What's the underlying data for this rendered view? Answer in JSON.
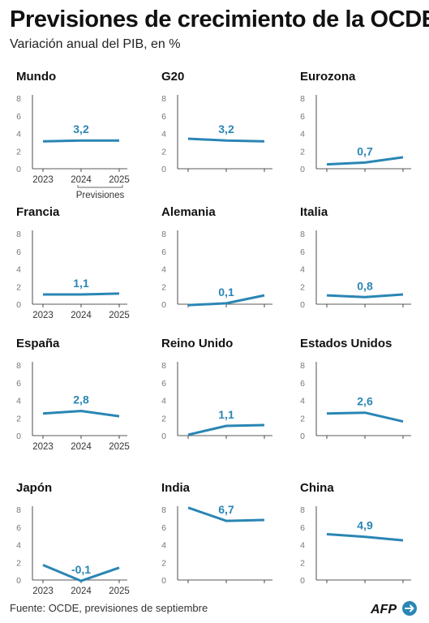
{
  "title": "Previsiones de crecimiento de la OCDE",
  "subtitle": "Variación anual del PIB, en %",
  "source": "Fuente: OCDE, previsiones de septiembre",
  "logo": {
    "text": "AFP",
    "icon": "afp-logo-icon"
  },
  "colors": {
    "line": "#2a86b4",
    "label": "#2a86b4",
    "axis": "#222222",
    "tick": "#777777"
  },
  "years": [
    "2023",
    "2024",
    "2025"
  ],
  "forecast_label": "Previsiones",
  "chart_data": [
    {
      "type": "line",
      "title": "Mundo",
      "x": [
        "2023",
        "2024",
        "2025"
      ],
      "values": [
        3.1,
        3.2,
        3.2
      ],
      "label": "3,2",
      "yticks": [
        0,
        2,
        4,
        6,
        8
      ],
      "ylim": [
        0,
        8
      ]
    },
    {
      "type": "line",
      "title": "G20",
      "x": [
        "2023",
        "2024",
        "2025"
      ],
      "values": [
        3.4,
        3.2,
        3.1
      ],
      "label": "3,2",
      "yticks": [
        0,
        2,
        4,
        6,
        8
      ],
      "ylim": [
        0,
        8
      ]
    },
    {
      "type": "line",
      "title": "Eurozona",
      "x": [
        "2023",
        "2024",
        "2025"
      ],
      "values": [
        0.5,
        0.7,
        1.3
      ],
      "label": "0,7",
      "yticks": [
        0,
        2,
        4,
        6,
        8
      ],
      "ylim": [
        0,
        8
      ]
    },
    {
      "type": "line",
      "title": "Francia",
      "x": [
        "2023",
        "2024",
        "2025"
      ],
      "values": [
        1.1,
        1.1,
        1.2
      ],
      "label": "1,1",
      "yticks": [
        0,
        2,
        4,
        6,
        8
      ],
      "ylim": [
        0,
        8
      ]
    },
    {
      "type": "line",
      "title": "Alemania",
      "x": [
        "2023",
        "2024",
        "2025"
      ],
      "values": [
        -0.1,
        0.1,
        1.0
      ],
      "label": "0,1",
      "yticks": [
        0,
        2,
        4,
        6,
        8
      ],
      "ylim": [
        0,
        8
      ]
    },
    {
      "type": "line",
      "title": "Italia",
      "x": [
        "2023",
        "2024",
        "2025"
      ],
      "values": [
        1.0,
        0.8,
        1.1
      ],
      "label": "0,8",
      "yticks": [
        0,
        2,
        4,
        6,
        8
      ],
      "ylim": [
        0,
        8
      ]
    },
    {
      "type": "line",
      "title": "España",
      "x": [
        "2023",
        "2024",
        "2025"
      ],
      "values": [
        2.5,
        2.8,
        2.2
      ],
      "label": "2,8",
      "yticks": [
        0,
        2,
        4,
        6,
        8
      ],
      "ylim": [
        0,
        8
      ]
    },
    {
      "type": "line",
      "title": "Reino Unido",
      "x": [
        "2023",
        "2024",
        "2025"
      ],
      "values": [
        0.1,
        1.1,
        1.2
      ],
      "label": "1,1",
      "yticks": [
        0,
        2,
        4,
        6,
        8
      ],
      "ylim": [
        0,
        8
      ]
    },
    {
      "type": "line",
      "title": "Estados Unidos",
      "x": [
        "2023",
        "2024",
        "2025"
      ],
      "values": [
        2.5,
        2.6,
        1.6
      ],
      "label": "2,6",
      "yticks": [
        0,
        2,
        4,
        6,
        8
      ],
      "ylim": [
        0,
        8
      ]
    },
    {
      "type": "line",
      "title": "Japón",
      "x": [
        "2023",
        "2024",
        "2025"
      ],
      "values": [
        1.7,
        -0.1,
        1.4
      ],
      "label": "-0,1",
      "yticks": [
        0,
        2,
        4,
        6,
        8
      ],
      "ylim": [
        0,
        8
      ]
    },
    {
      "type": "line",
      "title": "India",
      "x": [
        "2023",
        "2024",
        "2025"
      ],
      "values": [
        8.2,
        6.7,
        6.8
      ],
      "label": "6,7",
      "yticks": [
        0,
        2,
        4,
        6,
        8
      ],
      "ylim": [
        0,
        8
      ]
    },
    {
      "type": "line",
      "title": "China",
      "x": [
        "2023",
        "2024",
        "2025"
      ],
      "values": [
        5.2,
        4.9,
        4.5
      ],
      "label": "4,9",
      "yticks": [
        0,
        2,
        4,
        6,
        8
      ],
      "ylim": [
        0,
        8
      ]
    }
  ]
}
